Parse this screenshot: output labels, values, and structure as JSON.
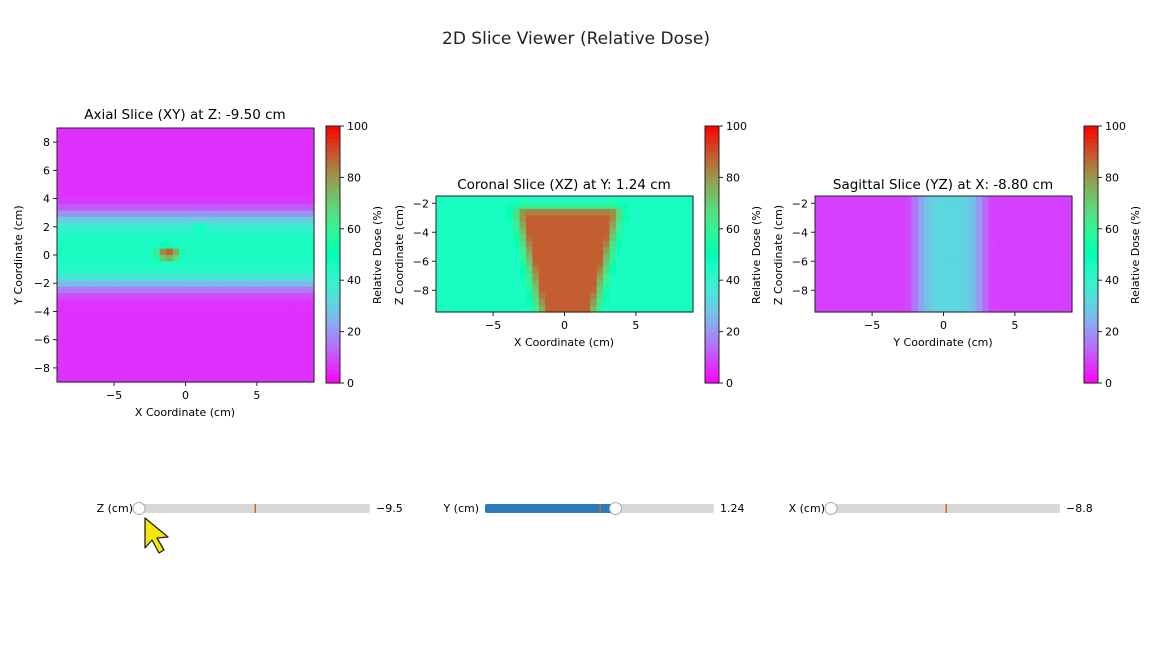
{
  "window": {
    "title": "2D Slice Viewer (Relative Dose)"
  },
  "colors": {
    "slider_track": "#d8d8d8",
    "slider_fill": "#2b7bba",
    "slider_marker": "#d2691e",
    "cursor": "#f5e60a"
  },
  "colormap": "rainbow",
  "chart_data": [
    {
      "type": "heatmap",
      "title": "Axial Slice (XY) at Z: -9.50 cm",
      "xlabel": "X Coordinate (cm)",
      "ylabel": "Y Coordinate (cm)",
      "xlim": [
        -9,
        9
      ],
      "ylim": [
        -9,
        9
      ],
      "xticks": [
        -5,
        0,
        5
      ],
      "yticks": [
        -8,
        -6,
        -4,
        -2,
        0,
        2,
        4,
        6,
        8
      ],
      "colorbar": {
        "label": "Relative Dose (%)",
        "range": [
          0,
          100
        ],
        "ticks": [
          0,
          20,
          40,
          60,
          80,
          100
        ]
      },
      "dose_features": [
        {
          "kind": "band",
          "axis": "y",
          "center": 0.3,
          "halfwidth": 2.6,
          "peak": 45
        },
        {
          "kind": "blob",
          "x": -1.2,
          "y": 0.1,
          "sx": 1.4,
          "sy": 0.8,
          "peak": 90
        },
        {
          "kind": "blob",
          "x": 1.0,
          "y": 1.8,
          "sx": 1.8,
          "sy": 0.8,
          "peak": 50
        }
      ]
    },
    {
      "type": "heatmap",
      "title": "Coronal Slice (XZ) at Y: 1.24 cm",
      "xlabel": "X Coordinate (cm)",
      "ylabel": "Z Coordinate (cm)",
      "xlim": [
        -9,
        9
      ],
      "ylim": [
        -9.5,
        -1.5
      ],
      "xticks": [
        -5,
        0,
        5
      ],
      "yticks": [
        -8,
        -6,
        -4,
        -2
      ],
      "colorbar": {
        "label": "Relative Dose (%)",
        "range": [
          0,
          100
        ],
        "ticks": [
          0,
          20,
          40,
          60,
          80,
          100
        ]
      },
      "dose_features": [
        {
          "kind": "base",
          "peak": 45
        },
        {
          "kind": "trapezoid",
          "ztop": -2.3,
          "zbot": -9.5,
          "xl_top": -3.5,
          "xr_top": 4.0,
          "xl_bot": -1.8,
          "xr_bot": 2.2,
          "peak": 88
        }
      ]
    },
    {
      "type": "heatmap",
      "title": "Sagittal Slice (YZ) at X: -8.80 cm",
      "xlabel": "Y Coordinate (cm)",
      "ylabel": "Z Coordinate (cm)",
      "xlim": [
        -9,
        9
      ],
      "ylim": [
        -9.5,
        -1.5
      ],
      "xticks": [
        -5,
        0,
        5
      ],
      "yticks": [
        -8,
        -6,
        -4,
        -2
      ],
      "colorbar": {
        "label": "Relative Dose (%)",
        "range": [
          0,
          100
        ],
        "ticks": [
          0,
          20,
          40,
          60,
          80,
          100
        ]
      },
      "dose_features": [
        {
          "kind": "base",
          "peak": 8
        },
        {
          "kind": "band",
          "axis": "x",
          "center": 0.4,
          "halfwidth": 2.4,
          "peak": 32
        }
      ]
    }
  ],
  "sliders": [
    {
      "label": "Z (cm)",
      "value_text": "−9.5",
      "fraction": 0.0,
      "marker_fraction": 0.5
    },
    {
      "label": "Y (cm)",
      "value_text": "1.24",
      "fraction": 0.57,
      "marker_fraction": 0.5
    },
    {
      "label": "X (cm)",
      "value_text": "−8.8",
      "fraction": 0.0,
      "marker_fraction": 0.5
    }
  ]
}
